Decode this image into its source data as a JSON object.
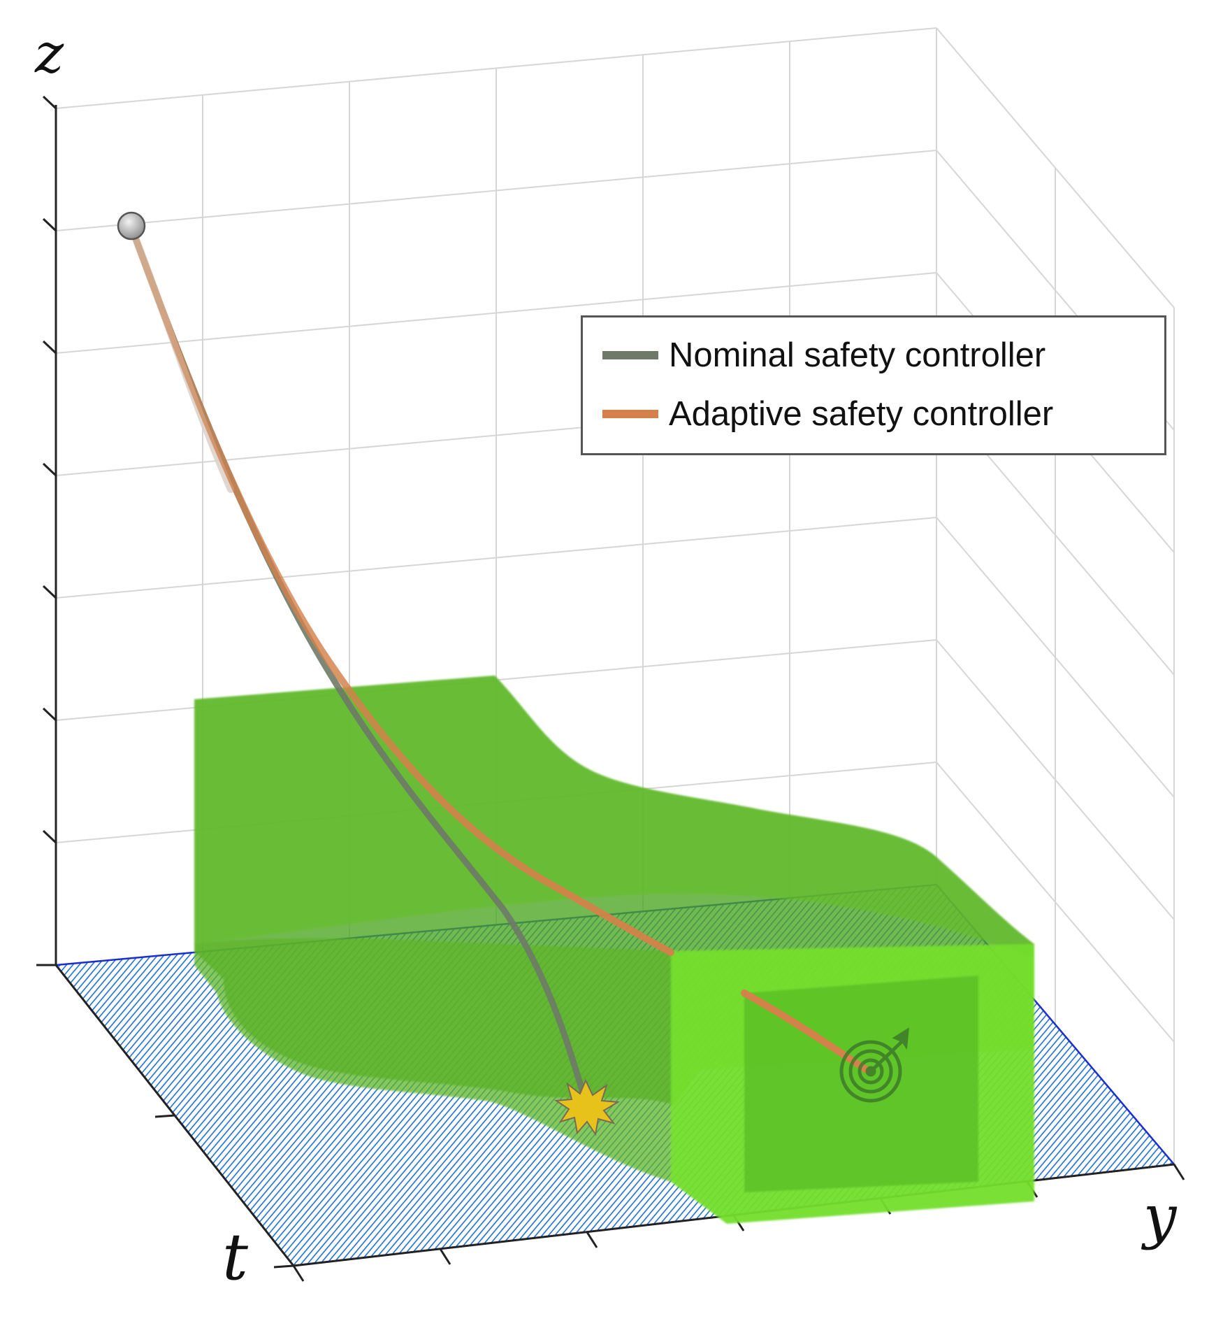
{
  "axes": {
    "z_label": "z",
    "t_label": "t",
    "y_label": "y"
  },
  "legend": {
    "items": [
      {
        "label": "Nominal safety controller",
        "color": "#6e7a67"
      },
      {
        "label": "Adaptive safety controller",
        "color": "#d4814a"
      }
    ]
  },
  "colors": {
    "safe_set": "#72d92a",
    "floor_hatch": "#1f6fd6",
    "nominal_trajectory": "#6e7a67",
    "adaptive_trajectory": "#d4814a",
    "grid": "#d4d4d4",
    "collision": "#e7c21a",
    "target": "#3e7a2a"
  },
  "markers": {
    "start": "circle-start-icon",
    "collision": "collision-burst-icon",
    "goal": "target-bullseye-icon"
  }
}
